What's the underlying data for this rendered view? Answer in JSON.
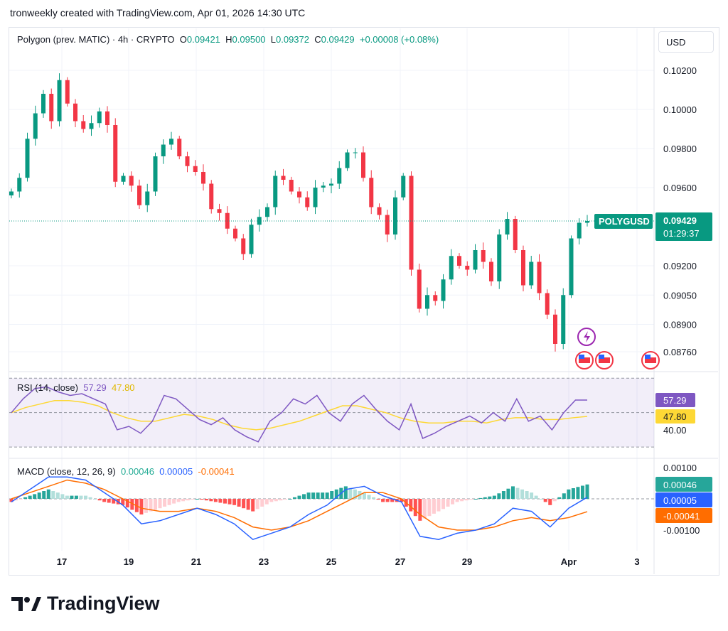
{
  "header": {
    "attribution": "tronweekly created with TradingView.com, Apr 01, 2026 14:30 UTC"
  },
  "legend": {
    "symbol": "Polygon (prev. MATIC) · 4h · CRYPTO",
    "o_label": "O",
    "o": "0.09421",
    "h_label": "H",
    "h": "0.09500",
    "l_label": "L",
    "l": "0.09372",
    "c_label": "C",
    "c": "0.09429",
    "change": "+0.00008 (+0.08%)"
  },
  "currency_button": "USD",
  "price_tag": {
    "symbol": "POLYGUSD",
    "price": "0.09429",
    "countdown": "01:29:37"
  },
  "rsi_legend": {
    "title": "RSI (14, close)",
    "rsi": "57.29",
    "ma": "47.80"
  },
  "macd_legend": {
    "title": "MACD (close, 12, 26, 9)",
    "hist": "0.00046",
    "macd": "0.00005",
    "signal": "-0.00041"
  },
  "brand": "TradingView",
  "colors": {
    "up": "#089981",
    "down": "#f23645",
    "rsi": "#7e57c2",
    "rsi_ma": "#fdd835",
    "macd": "#2962ff",
    "signal": "#ff6d00"
  },
  "chart_data": {
    "type": "candlestick",
    "timeframe": "4h",
    "price_axis": {
      "ticks": [
        "0.10200",
        "0.10000",
        "0.09800",
        "0.09600",
        "0.09200",
        "0.09050",
        "0.08900",
        "0.08760"
      ]
    },
    "x_ticks": [
      "17",
      "19",
      "21",
      "23",
      "25",
      "27",
      "29",
      "Apr",
      "3"
    ],
    "close": [
      0.0958,
      0.0965,
      0.0985,
      0.0998,
      0.1008,
      0.0994,
      0.1015,
      0.1003,
      0.0994,
      0.099,
      0.0993,
      0.0999,
      0.0992,
      0.0963,
      0.0966,
      0.0961,
      0.0951,
      0.0958,
      0.0976,
      0.0982,
      0.0985,
      0.0976,
      0.0971,
      0.0968,
      0.0962,
      0.0949,
      0.0947,
      0.0939,
      0.0934,
      0.0926,
      0.0941,
      0.0945,
      0.095,
      0.0966,
      0.0964,
      0.0958,
      0.0955,
      0.095,
      0.096,
      0.0961,
      0.0962,
      0.097,
      0.0978,
      0.0978,
      0.0965,
      0.095,
      0.0946,
      0.0936,
      0.0955,
      0.0966,
      0.0918,
      0.0898,
      0.0905,
      0.0902,
      0.0913,
      0.0925,
      0.092,
      0.0918,
      0.0928,
      0.0922,
      0.0912,
      0.0936,
      0.0944,
      0.0928,
      0.091,
      0.0922,
      0.0906,
      0.0895,
      0.088,
      0.0905,
      0.0934,
      0.0942,
      0.09429
    ],
    "last_price": 0.09429,
    "rsi": {
      "ticks": [
        "57.29",
        "47.80",
        "40.00"
      ],
      "band": [
        30,
        70
      ],
      "values": [
        50,
        58,
        64,
        65,
        62,
        60,
        61,
        58,
        55,
        40,
        42,
        38,
        45,
        60,
        58,
        52,
        46,
        43,
        47,
        40,
        36,
        33,
        45,
        50,
        58,
        55,
        60,
        50,
        45,
        55,
        60,
        52,
        45,
        40,
        55,
        35,
        38,
        42,
        45,
        48,
        44,
        50,
        45,
        58,
        45,
        48,
        40,
        50,
        57.29,
        57.29
      ],
      "ma": [
        50,
        53,
        55,
        57,
        57,
        56,
        54,
        50,
        47,
        45,
        45,
        47,
        49,
        48,
        46,
        43,
        41,
        40,
        41,
        43,
        45,
        48,
        51,
        54,
        54,
        52,
        50,
        47,
        45,
        44,
        44,
        45,
        45,
        44,
        46,
        47,
        47,
        46,
        46,
        47,
        47.8
      ]
    },
    "macd": {
      "ticks": [
        "0.00100",
        "-0.00100"
      ],
      "macd": [
        -0.0001,
        0.0003,
        0.0007,
        0.0007,
        0.0006,
        0.0002,
        -0.0002,
        -0.0008,
        -0.0007,
        -0.0005,
        -0.0003,
        -0.0005,
        -0.0008,
        -0.0013,
        -0.0011,
        -0.0009,
        -0.0005,
        -0.0002,
        0.0003,
        0.0004,
        0.0001,
        -0.0001,
        -0.0012,
        -0.0013,
        -0.0011,
        -0.001,
        -0.0008,
        -0.0003,
        -0.0004,
        -0.0009,
        -0.0003,
        5e-05
      ],
      "signal": [
        0,
        0.0002,
        0.0004,
        0.0006,
        0.0005,
        0.0003,
        0,
        -0.0003,
        -0.0004,
        -0.0004,
        -0.0003,
        -0.0004,
        -0.0006,
        -0.0009,
        -0.001,
        -0.0009,
        -0.0007,
        -0.0004,
        -0.0001,
        0.0002,
        0.0002,
        0,
        -0.0005,
        -0.0009,
        -0.001,
        -0.001,
        -0.0009,
        -0.0007,
        -0.0006,
        -0.0007,
        -0.0006,
        -0.00041
      ]
    }
  }
}
